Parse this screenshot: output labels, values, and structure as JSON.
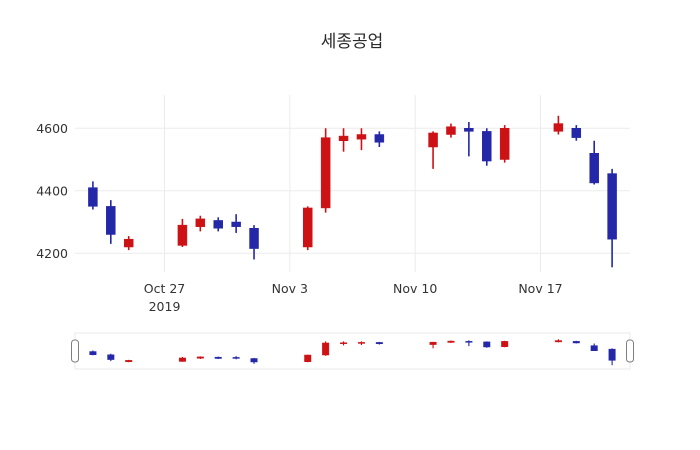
{
  "chart_data": {
    "type": "candlestick",
    "title": "세종공업",
    "increasing_color": "#cc1215",
    "decreasing_color": "#2428a8",
    "background": "#ffffff",
    "grid": true,
    "legend": false,
    "rangeslider": true,
    "xlim": [
      "2019-10-22",
      "2019-11-22"
    ],
    "ylim": [
      4140,
      4700
    ],
    "yticks": [
      4200,
      4400,
      4600
    ],
    "xticks": [
      {
        "date": "2019-10-27",
        "label": "Oct 27",
        "sublabel": "2019"
      },
      {
        "date": "2019-11-03",
        "label": "Nov 3"
      },
      {
        "date": "2019-11-10",
        "label": "Nov 10"
      },
      {
        "date": "2019-11-17",
        "label": "Nov 17"
      }
    ],
    "x": [
      "2019-10-23",
      "2019-10-24",
      "2019-10-25",
      "2019-10-28",
      "2019-10-29",
      "2019-10-30",
      "2019-10-31",
      "2019-11-01",
      "2019-11-04",
      "2019-11-05",
      "2019-11-06",
      "2019-11-07",
      "2019-11-08",
      "2019-11-11",
      "2019-11-12",
      "2019-11-13",
      "2019-11-14",
      "2019-11-15",
      "2019-11-18",
      "2019-11-19",
      "2019-11-20",
      "2019-11-21"
    ],
    "open": [
      4410,
      4350,
      4220,
      4225,
      4285,
      4305,
      4300,
      4280,
      4220,
      4345,
      4560,
      4565,
      4580,
      4540,
      4580,
      4600,
      4590,
      4500,
      4590,
      4600,
      4520,
      4455
    ],
    "high": [
      4430,
      4370,
      4255,
      4310,
      4320,
      4315,
      4325,
      4290,
      4350,
      4600,
      4600,
      4600,
      4590,
      4590,
      4615,
      4620,
      4600,
      4610,
      4640,
      4610,
      4560,
      4470
    ],
    "low": [
      4340,
      4230,
      4210,
      4220,
      4270,
      4270,
      4265,
      4180,
      4210,
      4330,
      4525,
      4530,
      4540,
      4470,
      4570,
      4510,
      4480,
      4490,
      4580,
      4560,
      4420,
      4155
    ],
    "close": [
      4350,
      4260,
      4245,
      4290,
      4310,
      4280,
      4285,
      4215,
      4345,
      4570,
      4575,
      4580,
      4555,
      4585,
      4605,
      4590,
      4495,
      4600,
      4615,
      4570,
      4425,
      4245
    ]
  }
}
